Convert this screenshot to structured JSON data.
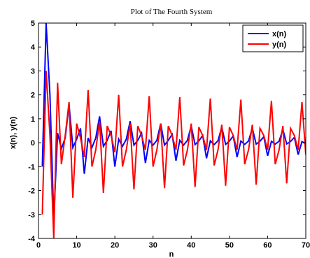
{
  "chart_data": {
    "type": "line",
    "title": "Plot of The Fourth System",
    "xlabel": "n",
    "ylabel": "x(n), y(n)",
    "xlim": [
      0,
      70
    ],
    "ylim": [
      -4,
      5
    ],
    "xticks": [
      0,
      10,
      20,
      30,
      40,
      50,
      60,
      70
    ],
    "yticks": [
      -4,
      -3,
      -2,
      -1,
      0,
      1,
      2,
      3,
      4,
      5
    ],
    "grid": false,
    "legend_position": "top-right",
    "x": [
      1,
      2,
      3,
      4,
      5,
      6,
      7,
      8,
      9,
      10,
      11,
      12,
      13,
      14,
      15,
      16,
      17,
      18,
      19,
      20,
      21,
      22,
      23,
      24,
      25,
      26,
      27,
      28,
      29,
      30,
      31,
      32,
      33,
      34,
      35,
      36,
      37,
      38,
      39,
      40,
      41,
      42,
      43,
      44,
      45,
      46,
      47,
      48,
      49,
      50,
      51,
      52,
      53,
      54,
      55,
      56,
      57,
      58,
      59,
      60,
      61,
      62,
      63,
      64,
      65,
      66,
      67,
      68,
      69,
      70
    ],
    "series": [
      {
        "name": "x(n)",
        "color": "#0000ff",
        "values": [
          -1.0,
          5.0,
          2.0,
          -3.2,
          0.4,
          -0.25,
          0.2,
          1.6,
          -0.2,
          0.15,
          0.6,
          -1.3,
          0.2,
          -0.2,
          0.2,
          1.1,
          -0.15,
          0.1,
          0.5,
          -1.0,
          0.15,
          -0.15,
          0.15,
          0.9,
          -0.1,
          0.1,
          0.4,
          -0.85,
          0.1,
          -0.1,
          0.1,
          0.8,
          -0.1,
          0.1,
          0.35,
          -0.75,
          0.1,
          -0.1,
          0.1,
          0.7,
          -0.08,
          0.08,
          0.3,
          -0.65,
          0.08,
          -0.08,
          0.08,
          0.65,
          -0.07,
          0.07,
          0.28,
          -0.6,
          0.07,
          -0.07,
          0.07,
          0.6,
          -0.06,
          0.06,
          0.25,
          -0.55,
          0.06,
          -0.06,
          0.06,
          0.55,
          -0.05,
          0.05,
          0.22,
          -0.5,
          0.05,
          -0.05
        ]
      },
      {
        "name": "y(n)",
        "color": "#ff0000",
        "values": [
          -3.0,
          3.0,
          0.3,
          -4.0,
          2.5,
          -0.9,
          0.3,
          1.7,
          -2.3,
          0.8,
          0.2,
          -0.6,
          2.2,
          -1.0,
          -0.3,
          0.9,
          -2.1,
          0.7,
          0.3,
          -0.4,
          2.0,
          -1.0,
          -0.3,
          0.8,
          -1.95,
          0.7,
          0.3,
          -0.3,
          1.95,
          -1.0,
          -0.3,
          0.8,
          -1.9,
          0.7,
          0.3,
          -0.3,
          1.9,
          -0.95,
          -0.3,
          0.8,
          -1.85,
          0.65,
          0.3,
          -0.3,
          1.85,
          -0.95,
          -0.3,
          0.75,
          -1.8,
          0.65,
          0.3,
          -0.3,
          1.8,
          -0.9,
          -0.3,
          0.75,
          -1.75,
          0.6,
          0.3,
          -0.3,
          1.75,
          -0.9,
          -0.3,
          0.7,
          -1.7,
          0.6,
          0.3,
          -0.3,
          1.7,
          -0.5
        ]
      }
    ]
  }
}
